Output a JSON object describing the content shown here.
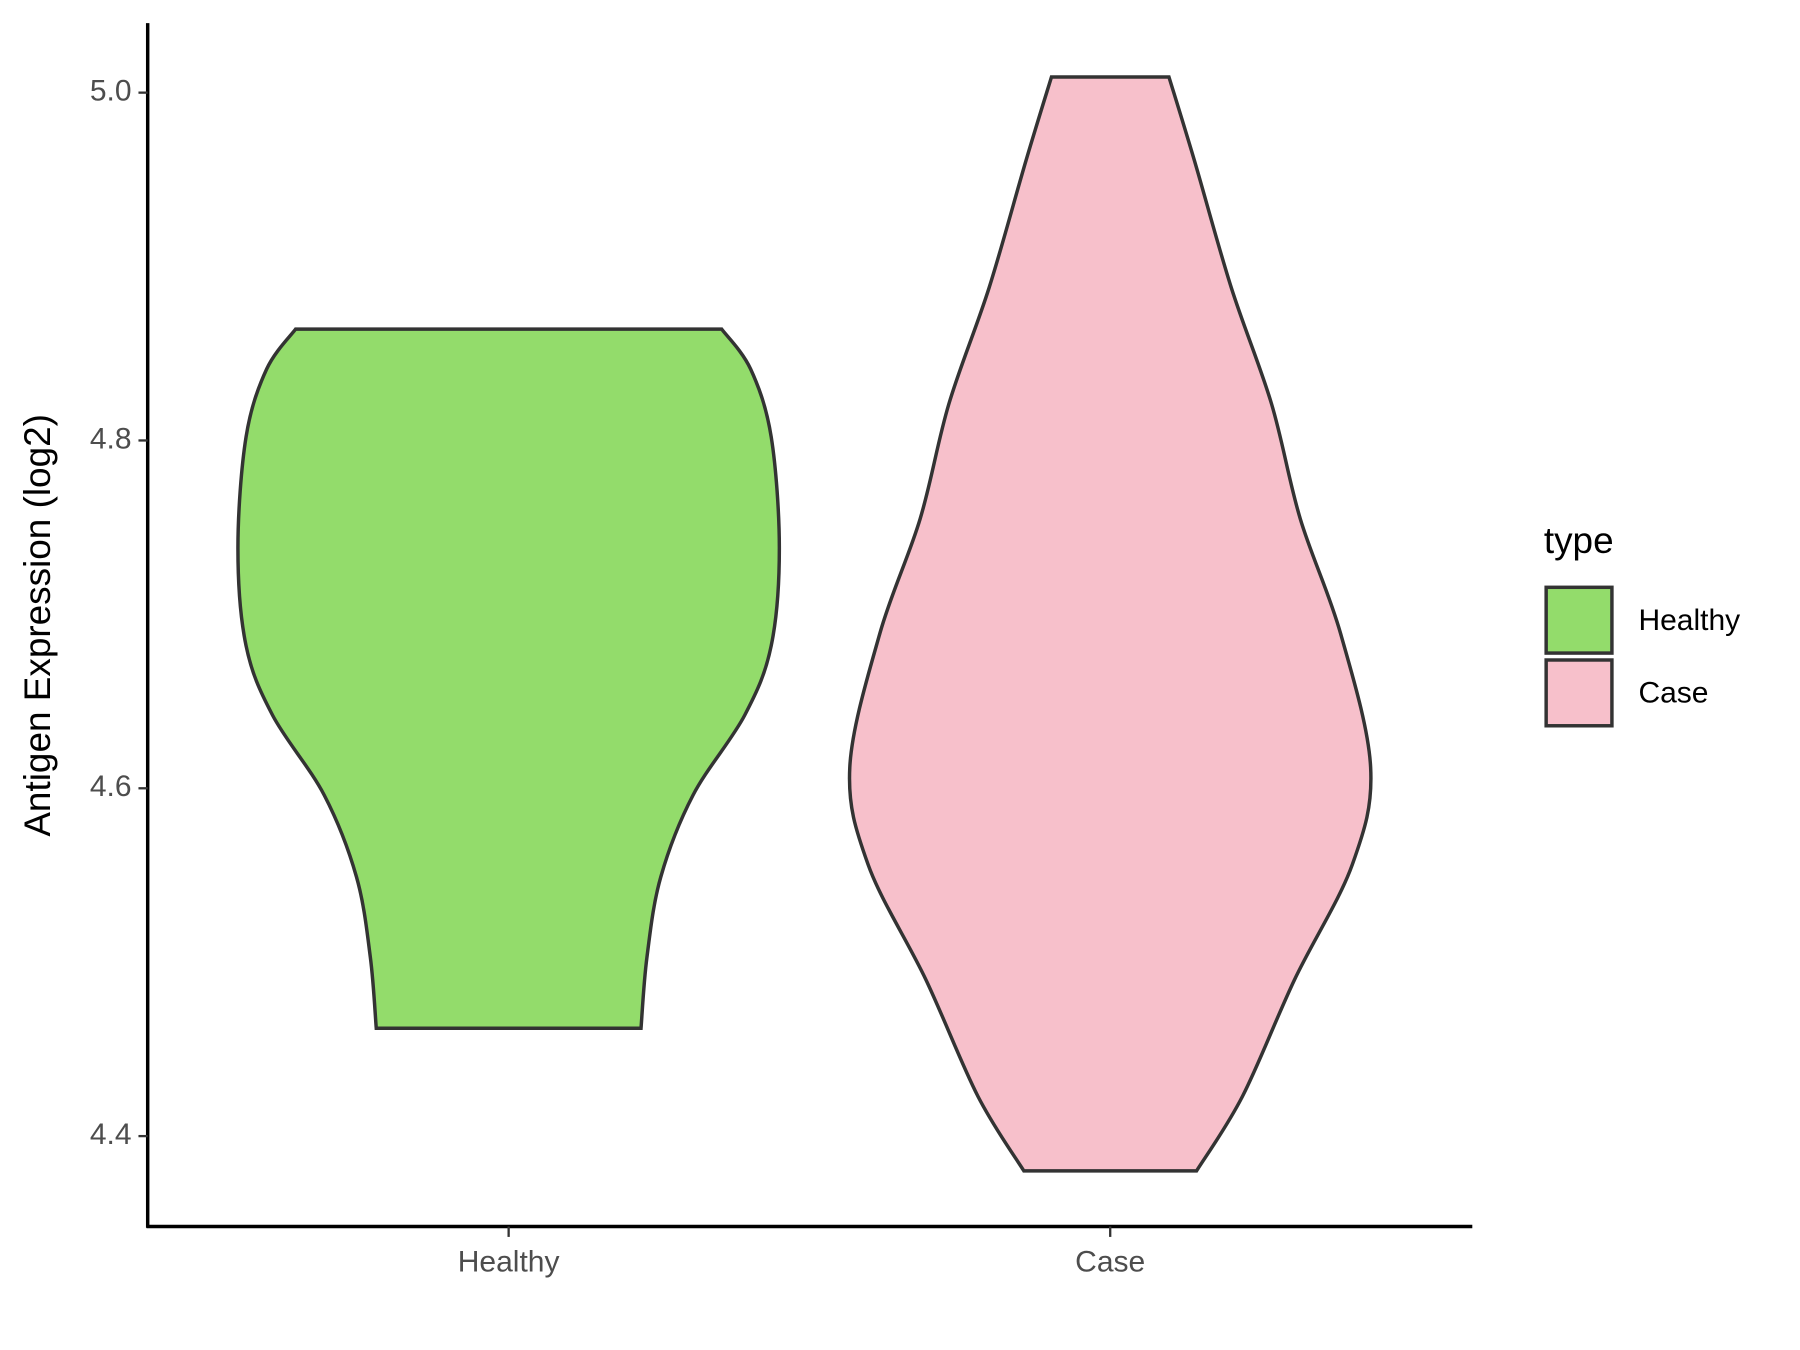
{
  "chart_data": {
    "type": "violin",
    "y_label": "Antigen Expression (log2)",
    "categories": [
      "Healthy",
      "Case"
    ],
    "legend_title": "type",
    "ylim": [
      4.348,
      5.04
    ],
    "yticks": [
      {
        "value": 4.4,
        "label": "4.4"
      },
      {
        "value": 4.6,
        "label": "4.6"
      },
      {
        "value": 4.8,
        "label": "4.8"
      },
      {
        "value": 5.0,
        "label": "5.0"
      }
    ],
    "series": [
      {
        "name": "Healthy",
        "color": "#93dc6b",
        "y": [
          4.864,
          4.841,
          4.802,
          4.738,
          4.682,
          4.642,
          4.596,
          4.549,
          4.503,
          4.462
        ],
        "width": [
          0.787,
          0.894,
          0.97,
          1,
          0.97,
          0.872,
          0.681,
          0.562,
          0.511,
          0.489
        ]
      },
      {
        "name": "Case",
        "color": "#f7c0cb",
        "y": [
          5.009,
          4.961,
          4.888,
          4.821,
          4.755,
          4.689,
          4.612,
          4.556,
          4.49,
          4.423,
          4.38
        ],
        "width": [
          0.217,
          0.311,
          0.447,
          0.596,
          0.702,
          0.851,
          0.962,
          0.894,
          0.681,
          0.489,
          0.319
        ]
      }
    ]
  }
}
